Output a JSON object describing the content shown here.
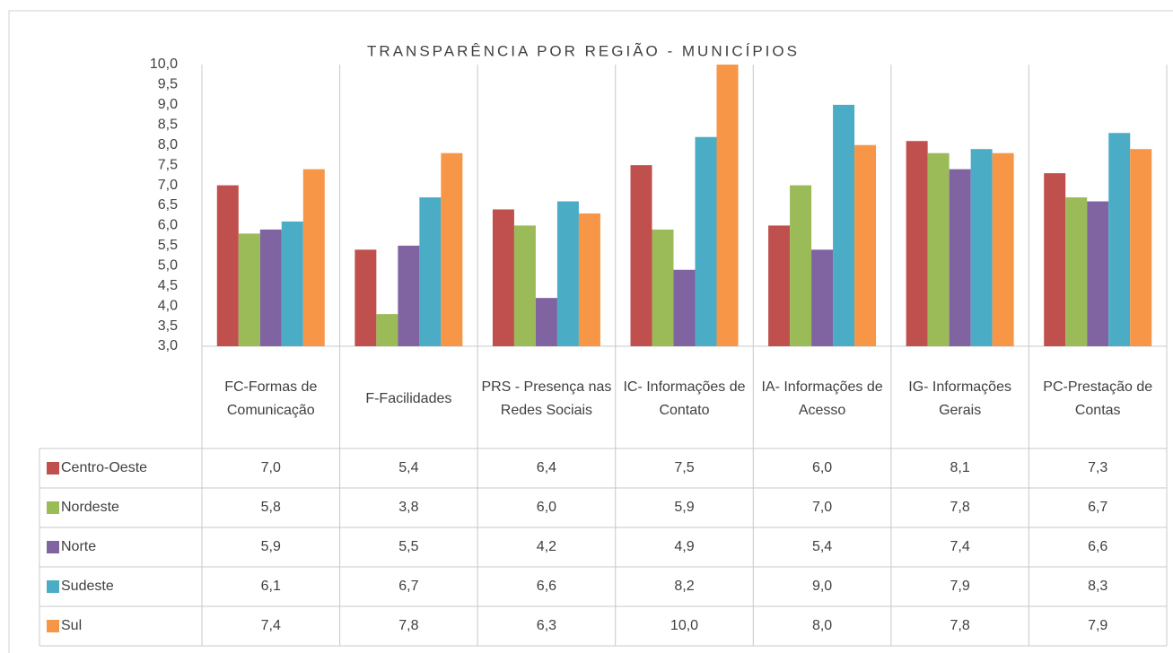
{
  "chart_data": {
    "type": "bar",
    "title": "TRANSPARÊNCIA POR REGIÃO - MUNICÍPIOS",
    "categories": [
      "FC-Formas de Comunicação",
      "F-Facilidades",
      "PRS - Presença nas Redes Sociais",
      "IC- Informações de Contato",
      "IA- Informações de Acesso",
      "IG- Informações Gerais",
      "PC-Prestação de Contas"
    ],
    "series": [
      {
        "name": "Centro-Oeste",
        "color": "#c0504d",
        "values": [
          7.0,
          5.4,
          6.4,
          7.5,
          6.0,
          8.1,
          7.3
        ],
        "value_labels": [
          "7,0",
          "5,4",
          "6,4",
          "7,5",
          "6,0",
          "8,1",
          "7,3"
        ]
      },
      {
        "name": "Nordeste",
        "color": "#9bbb59",
        "values": [
          5.8,
          3.8,
          6.0,
          5.9,
          7.0,
          7.8,
          6.7
        ],
        "value_labels": [
          "5,8",
          "3,8",
          "6,0",
          "5,9",
          "7,0",
          "7,8",
          "6,7"
        ]
      },
      {
        "name": "Norte",
        "color": "#8064a2",
        "values": [
          5.9,
          5.5,
          4.2,
          4.9,
          5.4,
          7.4,
          6.6
        ],
        "value_labels": [
          "5,9",
          "5,5",
          "4,2",
          "4,9",
          "5,4",
          "7,4",
          "6,6"
        ]
      },
      {
        "name": "Sudeste",
        "color": "#4bacc6",
        "values": [
          6.1,
          6.7,
          6.6,
          8.2,
          9.0,
          7.9,
          8.3
        ],
        "value_labels": [
          "6,1",
          "6,7",
          "6,6",
          "8,2",
          "9,0",
          "7,9",
          "8,3"
        ]
      },
      {
        "name": "Sul",
        "color": "#f79646",
        "values": [
          7.4,
          7.8,
          6.3,
          10.0,
          8.0,
          7.8,
          7.9
        ],
        "value_labels": [
          "7,4",
          "7,8",
          "6,3",
          "10,0",
          "8,0",
          "7,8",
          "7,9"
        ]
      }
    ],
    "ylim": [
      3,
      10
    ],
    "yticks": [
      {
        "value": 3,
        "label": "3,0"
      },
      {
        "value": 3.5,
        "label": "3,5"
      },
      {
        "value": 4,
        "label": "4,0"
      },
      {
        "value": 4.5,
        "label": "4,5"
      },
      {
        "value": 5,
        "label": "5,0"
      },
      {
        "value": 5.5,
        "label": "5,5"
      },
      {
        "value": 6,
        "label": "6,0"
      },
      {
        "value": 6.5,
        "label": "6,5"
      },
      {
        "value": 7,
        "label": "7,0"
      },
      {
        "value": 7.5,
        "label": "7,5"
      },
      {
        "value": 8,
        "label": "8,0"
      },
      {
        "value": 8.5,
        "label": "8,5"
      },
      {
        "value": 9,
        "label": "9,0"
      },
      {
        "value": 9.5,
        "label": "9,5"
      },
      {
        "value": 10,
        "label": "10,0"
      }
    ]
  }
}
